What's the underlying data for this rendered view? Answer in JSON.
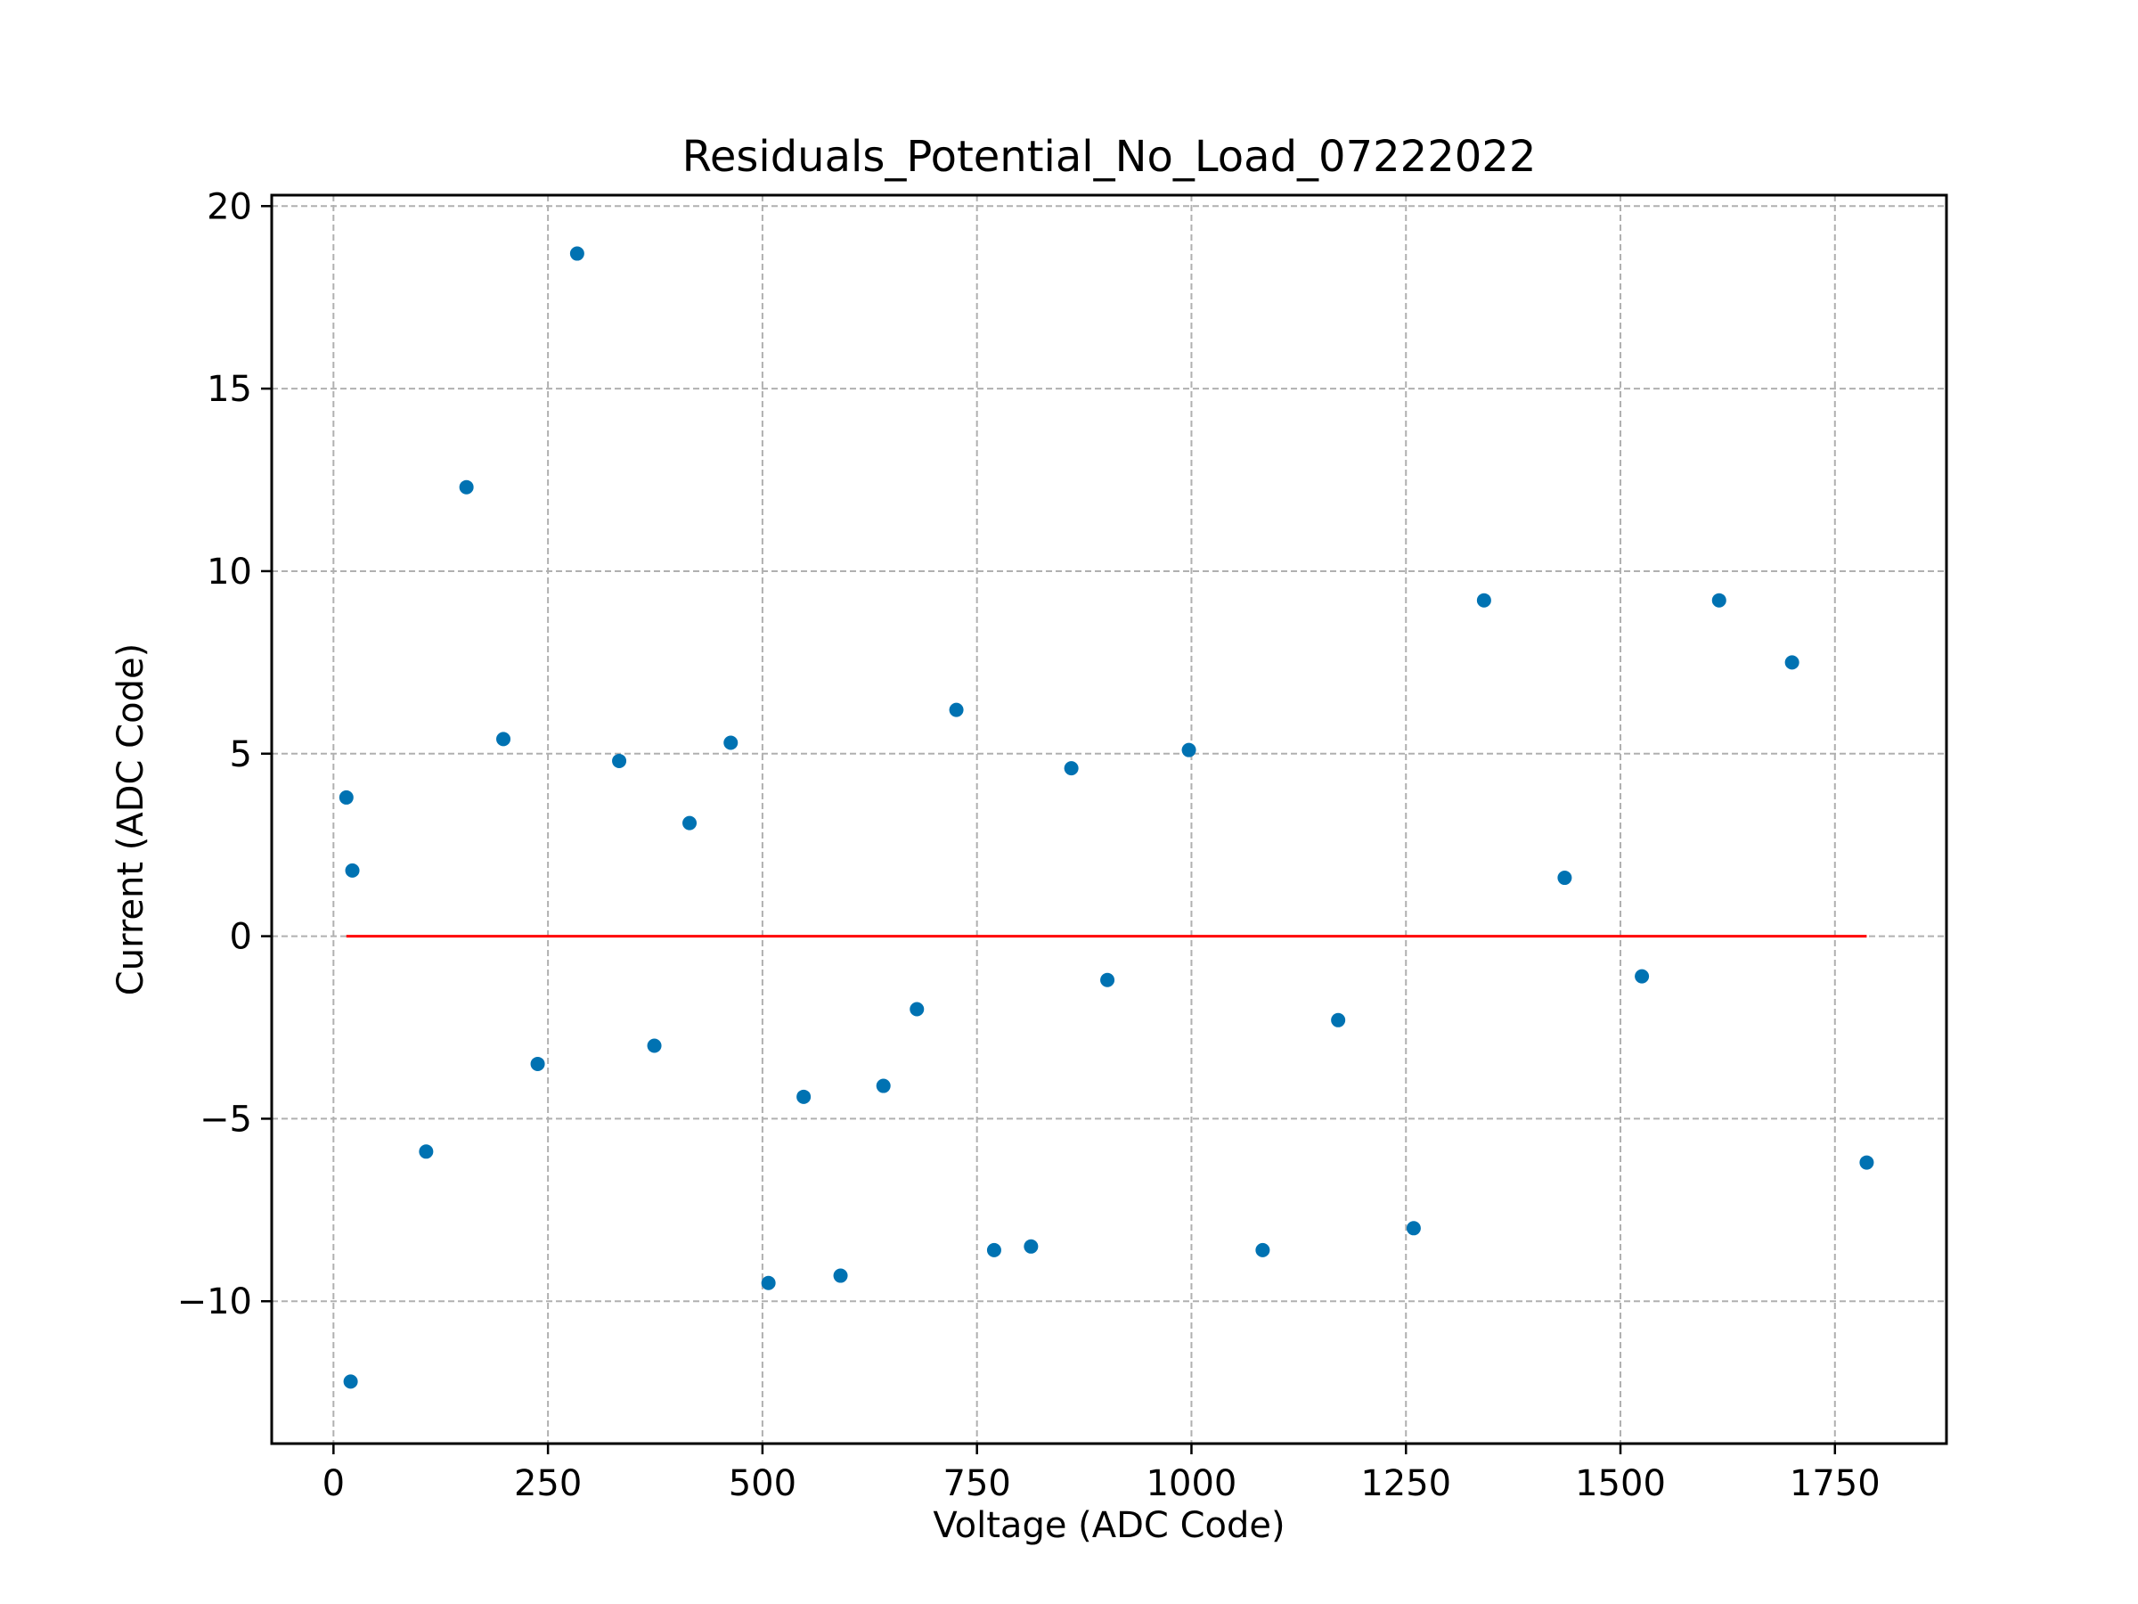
{
  "chart_data": {
    "type": "scatter",
    "title": "Residuals_Potential_No_Load_07222022",
    "xlabel": "Voltage (ADC Code)",
    "ylabel": "Current (ADC Code)",
    "xlim": [
      -72,
      1880
    ],
    "ylim": [
      -13.9,
      20.3
    ],
    "xticks": [
      0,
      250,
      500,
      750,
      1000,
      1250,
      1500,
      1750
    ],
    "yticks": [
      -10,
      -5,
      0,
      5,
      10,
      15,
      20
    ],
    "xtick_labels": [
      "0",
      "250",
      "500",
      "750",
      "1000",
      "1250",
      "1500",
      "1750"
    ],
    "ytick_labels": [
      "−10",
      "−5",
      "0",
      "5",
      "10",
      "15",
      "20"
    ],
    "grid": true,
    "series": [
      {
        "kind": "points",
        "color": "#0072b2",
        "points": [
          [
            15,
            3.8
          ],
          [
            20,
            -12.2
          ],
          [
            22,
            1.8
          ],
          [
            108,
            -5.9
          ],
          [
            155,
            12.3
          ],
          [
            198,
            5.4
          ],
          [
            238,
            -3.5
          ],
          [
            284,
            18.7
          ],
          [
            333,
            4.8
          ],
          [
            374,
            -3.0
          ],
          [
            415,
            3.1
          ],
          [
            463,
            5.3
          ],
          [
            507,
            -9.5
          ],
          [
            548,
            -4.4
          ],
          [
            591,
            -9.3
          ],
          [
            641,
            -4.1
          ],
          [
            680,
            -2.0
          ],
          [
            726,
            6.2
          ],
          [
            770,
            -8.6
          ],
          [
            813,
            -8.5
          ],
          [
            860,
            4.6
          ],
          [
            902,
            -1.2
          ],
          [
            997,
            5.1
          ],
          [
            1083,
            -8.6
          ],
          [
            1171,
            -2.3
          ],
          [
            1259,
            -8.0
          ],
          [
            1341,
            9.2
          ],
          [
            1435,
            1.6
          ],
          [
            1525,
            -1.1
          ],
          [
            1615,
            9.2
          ],
          [
            1700,
            7.5
          ],
          [
            1787,
            -6.2
          ]
        ]
      },
      {
        "kind": "line",
        "color": "#ff0000",
        "points": [
          [
            15,
            0
          ],
          [
            1787,
            0
          ]
        ]
      }
    ]
  }
}
